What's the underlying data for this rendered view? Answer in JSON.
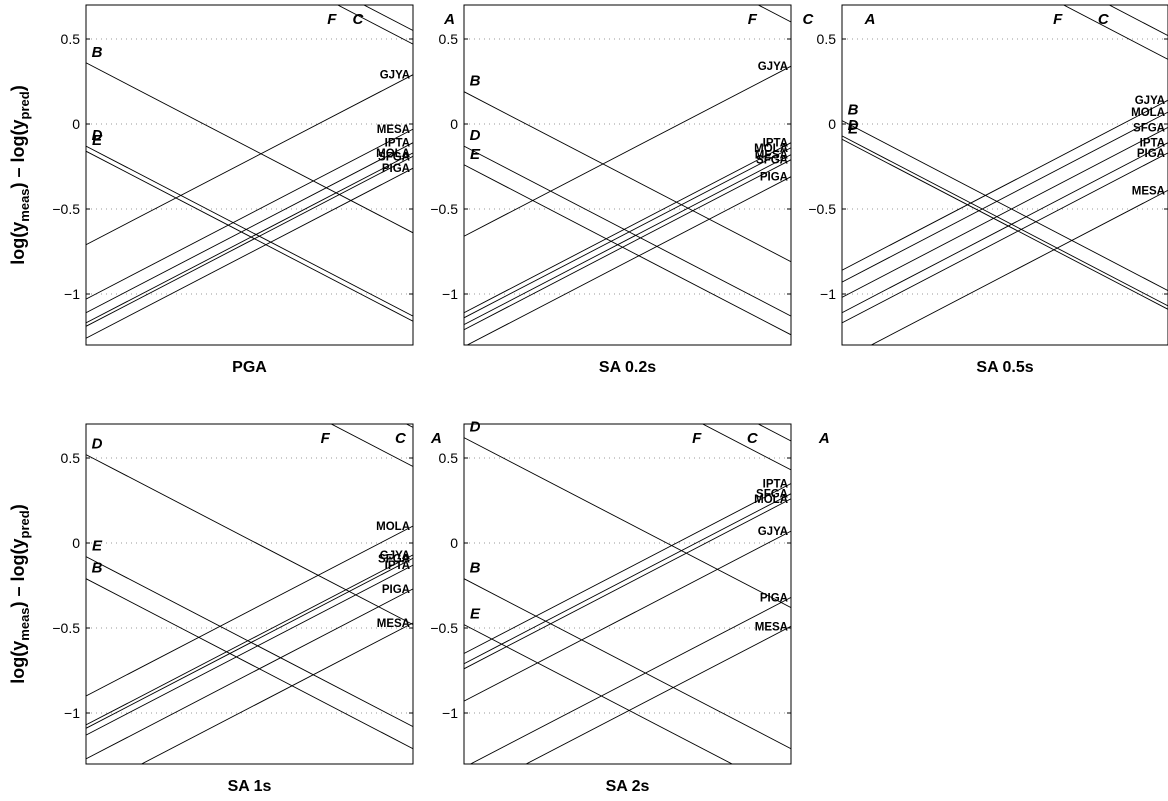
{
  "figure": {
    "ylabel_main": "log(y",
    "ylabel_sub1": "meas",
    "ylabel_mid": ") – log(y",
    "ylabel_sub2": "pred",
    "ylabel_end": ")"
  },
  "chart_data": [
    {
      "type": "line",
      "title": "PGA",
      "ylim": [
        -1.3,
        0.7
      ],
      "yticks": [
        0.5,
        0,
        -0.5,
        -1
      ],
      "ytick_labels": [
        "0.5",
        "0",
        "−0.5",
        "−1"
      ],
      "grid": "y dotted",
      "events": [
        {
          "label": "F",
          "intercept": 1.47
        },
        {
          "label": "C",
          "intercept": 1.55
        },
        {
          "label": "A",
          "intercept": 1.83
        },
        {
          "label": "B",
          "intercept": 0.36
        },
        {
          "label": "D",
          "intercept": -0.13
        },
        {
          "label": "E",
          "intercept": -0.16
        }
      ],
      "stations": [
        {
          "label": "GJYA",
          "intercept": -0.71
        },
        {
          "label": "MESA",
          "intercept": -1.03
        },
        {
          "label": "IPTA",
          "intercept": -1.11
        },
        {
          "label": "MOLA",
          "intercept": -1.17
        },
        {
          "label": "SFGA",
          "intercept": -1.19
        },
        {
          "label": "PIGA",
          "intercept": -1.26
        }
      ]
    },
    {
      "type": "line",
      "title": "SA 0.2s",
      "ylim": [
        -1.3,
        0.7
      ],
      "yticks": [
        0.5,
        0,
        -0.5,
        -1
      ],
      "ytick_labels": [
        "0.5",
        "0",
        "−0.5",
        "−1"
      ],
      "grid": "y dotted",
      "events": [
        {
          "label": "F",
          "intercept": 1.6
        },
        {
          "label": "C",
          "intercept": 1.77
        },
        {
          "label": "A",
          "intercept": 1.96
        },
        {
          "label": "B",
          "intercept": 0.19
        },
        {
          "label": "D",
          "intercept": -0.13
        },
        {
          "label": "E",
          "intercept": -0.24
        }
      ],
      "stations": [
        {
          "label": "GJYA",
          "intercept": -0.66
        },
        {
          "label": "IPTA",
          "intercept": -1.11
        },
        {
          "label": "MOLA",
          "intercept": -1.14
        },
        {
          "label": "MESA",
          "intercept": -1.18
        },
        {
          "label": "SFGA",
          "intercept": -1.21
        },
        {
          "label": "PIGA",
          "intercept": -1.31
        }
      ]
    },
    {
      "type": "line",
      "title": "SA 0.5s",
      "ylim": [
        -1.3,
        0.7
      ],
      "yticks": [
        0.5,
        0,
        -0.5,
        -1
      ],
      "ytick_labels": [
        "0.5",
        "0",
        "−0.5",
        "−1"
      ],
      "grid": "y dotted",
      "events": [
        {
          "label": "F",
          "intercept": 1.38
        },
        {
          "label": "C",
          "intercept": 1.52
        },
        {
          "label": "A",
          "intercept": 1.81
        },
        {
          "label": "B",
          "intercept": 0.02
        },
        {
          "label": "D",
          "intercept": -0.07
        },
        {
          "label": "E",
          "intercept": -0.09
        }
      ],
      "stations": [
        {
          "label": "GJYA",
          "intercept": -0.86
        },
        {
          "label": "MOLA",
          "intercept": -0.93
        },
        {
          "label": "SFGA",
          "intercept": -1.02
        },
        {
          "label": "IPTA",
          "intercept": -1.11
        },
        {
          "label": "PIGA",
          "intercept": -1.17
        },
        {
          "label": "MESA",
          "intercept": -1.39
        }
      ]
    },
    {
      "type": "line",
      "title": "SA 1s",
      "ylim": [
        -1.3,
        0.7
      ],
      "yticks": [
        0.5,
        0,
        -0.5,
        -1
      ],
      "ytick_labels": [
        "0.5",
        "0",
        "−0.5",
        "−1"
      ],
      "grid": "y dotted",
      "events": [
        {
          "label": "F",
          "intercept": 1.45
        },
        {
          "label": "C",
          "intercept": 1.68
        },
        {
          "label": "A",
          "intercept": 1.79
        },
        {
          "label": "D",
          "intercept": 0.52
        },
        {
          "label": "E",
          "intercept": -0.08
        },
        {
          "label": "B",
          "intercept": -0.21
        }
      ],
      "stations": [
        {
          "label": "MOLA",
          "intercept": -0.9
        },
        {
          "label": "GJYA",
          "intercept": -1.07
        },
        {
          "label": "SFGA",
          "intercept": -1.09
        },
        {
          "label": "IPTA",
          "intercept": -1.13
        },
        {
          "label": "PIGA",
          "intercept": -1.27
        },
        {
          "label": "MESA",
          "intercept": -1.47
        }
      ]
    },
    {
      "type": "line",
      "title": "SA 2s",
      "ylim": [
        -1.3,
        0.7
      ],
      "yticks": [
        0.5,
        0,
        -0.5,
        -1
      ],
      "ytick_labels": [
        "0.5",
        "0",
        "−0.5",
        "−1"
      ],
      "grid": "y dotted",
      "events": [
        {
          "label": "F",
          "intercept": 1.43
        },
        {
          "label": "C",
          "intercept": 1.6
        },
        {
          "label": "A",
          "intercept": 1.82
        },
        {
          "label": "D",
          "intercept": 0.62
        },
        {
          "label": "B",
          "intercept": -0.21
        },
        {
          "label": "E",
          "intercept": -0.48
        }
      ],
      "stations": [
        {
          "label": "IPTA",
          "intercept": -0.65
        },
        {
          "label": "SFGA",
          "intercept": -0.71
        },
        {
          "label": "MOLA",
          "intercept": -0.74
        },
        {
          "label": "GJYA",
          "intercept": -0.93
        },
        {
          "label": "PIGA",
          "intercept": -1.32
        },
        {
          "label": "MESA",
          "intercept": -1.49
        }
      ]
    }
  ]
}
